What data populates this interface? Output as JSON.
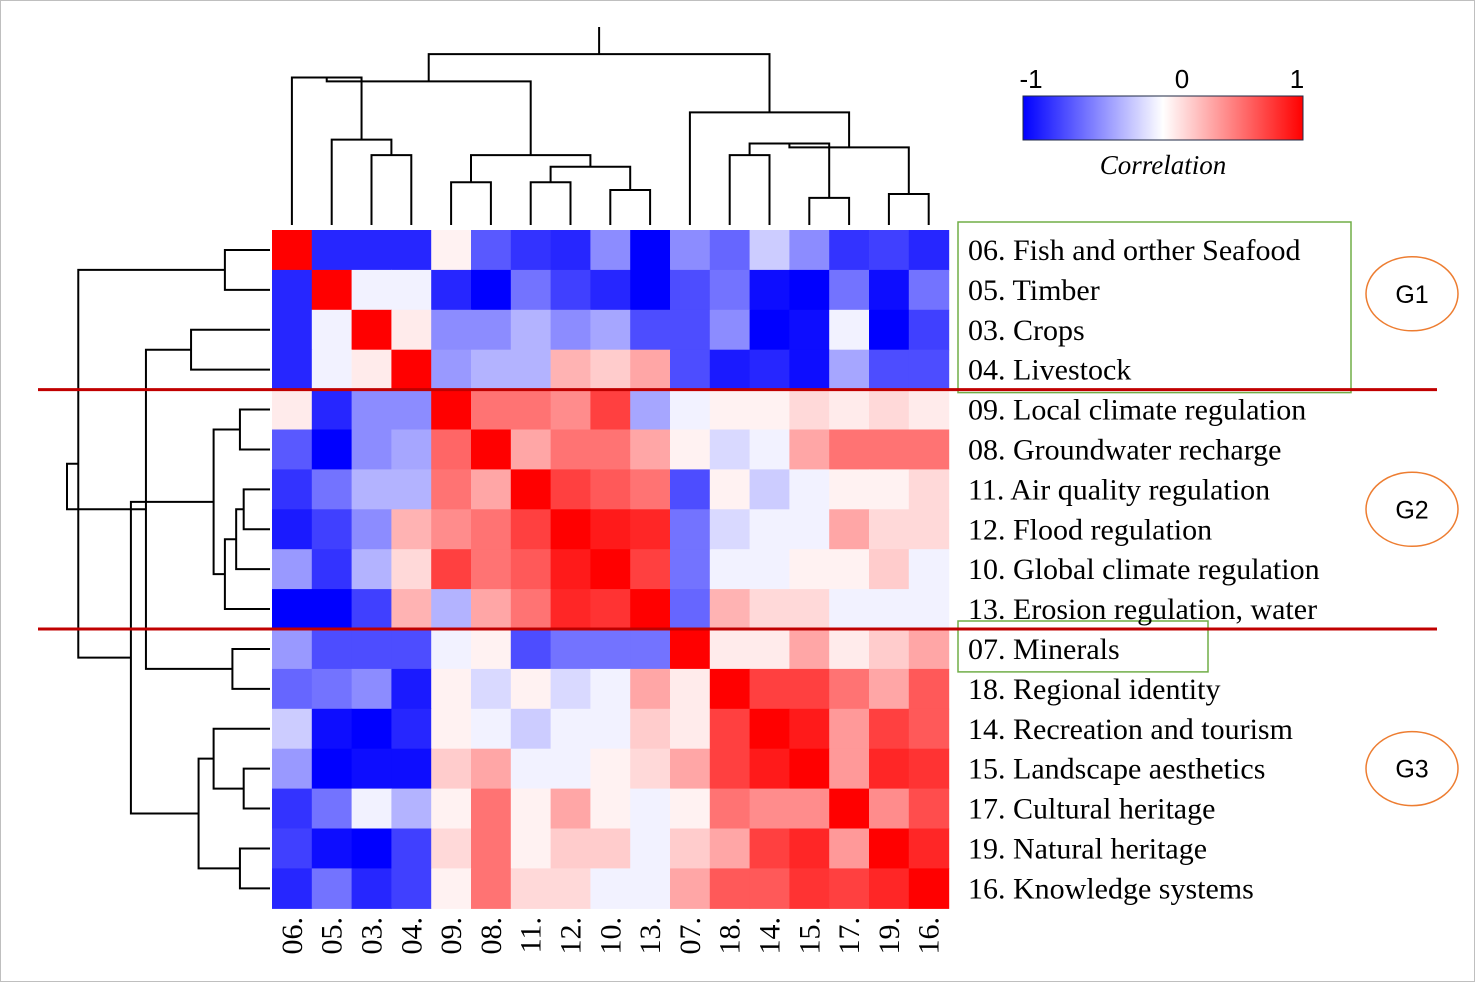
{
  "chart_data": {
    "type": "heatmap",
    "row_labels": [
      "06. Fish and orther Seafood",
      "05. Timber",
      "03. Crops",
      "04. Livestock",
      "09. Local climate regulation",
      "08. Groundwater recharge",
      "11. Air quality regulation",
      "12. Flood regulation",
      "10. Global climate regulation",
      "13. Erosion regulation, water",
      "07. Minerals",
      "18. Regional identity",
      "14. Recreation and tourism",
      "15. Landscape aesthetics",
      "17. Cultural heritage",
      "19. Natural heritage",
      "16. Knowledge systems"
    ],
    "column_labels": [
      "06.",
      "05.",
      "03.",
      "04.",
      "09.",
      "08.",
      "11.",
      "12.",
      "10.",
      "13.",
      "07.",
      "18.",
      "14.",
      "15.",
      "17.",
      "19.",
      "16."
    ],
    "values": [
      [
        1.0,
        -0.85,
        -0.85,
        -0.85,
        0.05,
        -0.65,
        -0.8,
        -0.85,
        -0.45,
        -1.0,
        -0.45,
        -0.6,
        -0.2,
        -0.45,
        -0.8,
        -0.75,
        -0.85
      ],
      [
        -0.85,
        1.0,
        -0.05,
        -0.05,
        -0.85,
        -1.0,
        -0.55,
        -0.75,
        -0.85,
        -1.0,
        -0.7,
        -0.55,
        -0.95,
        -1.0,
        -0.55,
        -0.95,
        -0.55
      ],
      [
        -0.85,
        -0.05,
        1.0,
        0.08,
        -0.45,
        -0.45,
        -0.3,
        -0.45,
        -0.35,
        -0.7,
        -0.7,
        -0.45,
        -1.0,
        -0.95,
        -0.05,
        -1.0,
        -0.75
      ],
      [
        -0.85,
        -0.05,
        0.08,
        1.0,
        -0.4,
        -0.3,
        -0.3,
        0.3,
        0.2,
        0.35,
        -0.7,
        -0.9,
        -0.85,
        -0.95,
        -0.35,
        -0.7,
        -0.7
      ],
      [
        0.08,
        -0.85,
        -0.45,
        -0.45,
        1.0,
        0.55,
        0.55,
        0.45,
        0.75,
        -0.35,
        -0.05,
        0.05,
        0.05,
        0.15,
        0.08,
        0.15,
        0.08
      ],
      [
        -0.65,
        -1.0,
        -0.45,
        -0.35,
        0.6,
        1.0,
        0.35,
        0.55,
        0.55,
        0.35,
        0.05,
        -0.15,
        -0.05,
        0.35,
        0.55,
        0.55,
        0.55
      ],
      [
        -0.8,
        -0.55,
        -0.3,
        -0.3,
        0.55,
        0.35,
        1.0,
        0.75,
        0.65,
        0.55,
        -0.7,
        0.05,
        -0.2,
        -0.05,
        0.05,
        0.05,
        0.15
      ],
      [
        -0.9,
        -0.75,
        -0.45,
        0.3,
        0.45,
        0.55,
        0.75,
        1.0,
        0.9,
        0.85,
        -0.55,
        -0.15,
        -0.05,
        -0.05,
        0.35,
        0.15,
        0.15
      ],
      [
        -0.4,
        -0.8,
        -0.3,
        0.15,
        0.75,
        0.55,
        0.65,
        0.9,
        1.0,
        0.75,
        -0.55,
        -0.05,
        -0.05,
        0.05,
        0.05,
        0.2,
        -0.05
      ],
      [
        -1.0,
        -1.0,
        -0.75,
        0.3,
        -0.3,
        0.35,
        0.55,
        0.85,
        0.8,
        1.0,
        -0.6,
        0.3,
        0.15,
        0.15,
        -0.05,
        -0.05,
        -0.05
      ],
      [
        -0.4,
        -0.7,
        -0.7,
        -0.7,
        -0.05,
        0.05,
        -0.7,
        -0.55,
        -0.55,
        -0.55,
        1.0,
        0.08,
        0.08,
        0.35,
        0.08,
        0.2,
        0.35
      ],
      [
        -0.6,
        -0.55,
        -0.45,
        -0.9,
        0.05,
        -0.15,
        0.05,
        -0.15,
        -0.05,
        0.35,
        0.08,
        1.0,
        0.75,
        0.75,
        0.55,
        0.35,
        0.65
      ],
      [
        -0.2,
        -0.95,
        -1.0,
        -0.85,
        0.05,
        -0.05,
        -0.2,
        -0.05,
        -0.05,
        0.2,
        0.08,
        0.75,
        1.0,
        0.9,
        0.4,
        0.75,
        0.65
      ],
      [
        -0.4,
        -1.0,
        -0.95,
        -0.95,
        0.2,
        0.35,
        -0.05,
        -0.05,
        0.05,
        0.15,
        0.35,
        0.75,
        0.9,
        1.0,
        0.4,
        0.85,
        0.8
      ],
      [
        -0.8,
        -0.55,
        -0.05,
        -0.3,
        0.05,
        0.55,
        0.05,
        0.35,
        0.05,
        -0.05,
        0.05,
        0.55,
        0.45,
        0.45,
        1.0,
        0.45,
        0.7
      ],
      [
        -0.75,
        -0.95,
        -1.0,
        -0.75,
        0.15,
        0.55,
        0.05,
        0.2,
        0.2,
        -0.05,
        0.2,
        0.35,
        0.75,
        0.85,
        0.4,
        1.0,
        0.85
      ],
      [
        -0.85,
        -0.55,
        -0.85,
        -0.75,
        0.05,
        0.55,
        0.15,
        0.15,
        -0.05,
        -0.05,
        0.35,
        0.65,
        0.65,
        0.8,
        0.75,
        0.85,
        1.0
      ]
    ],
    "colorbar": {
      "min_label": "-1",
      "mid_label": "0",
      "max_label": "1",
      "label": "Correlation",
      "range": [
        -1,
        1
      ],
      "colors": [
        "#0000ff",
        "#ffffff",
        "#ff0000"
      ]
    },
    "groups": [
      {
        "label": "G1",
        "first_row": 0,
        "last_row": 3
      },
      {
        "label": "G2",
        "first_row": 4,
        "last_row": 9
      },
      {
        "label": "G3",
        "first_row": 10,
        "last_row": 16
      }
    ],
    "row_dendrogram": {
      "leaves": 17,
      "merges": [
        [
          4,
          5,
          0.8
        ],
        [
          6,
          7,
          0.7
        ],
        [
          18,
          8,
          0.9
        ],
        [
          19,
          9,
          1.2
        ],
        [
          17,
          20,
          1.5
        ],
        [
          13,
          14,
          0.7
        ],
        [
          16,
          15,
          0.8
        ],
        [
          22,
          12,
          1.5
        ],
        [
          10,
          11,
          1.0
        ],
        [
          0,
          1,
          1.2
        ],
        [
          2,
          3,
          2.1
        ],
        [
          23,
          24,
          1.9
        ],
        [
          27,
          25,
          3.3
        ],
        [
          21,
          28,
          3.7
        ],
        [
          26,
          30,
          5.1
        ],
        [
          29,
          31,
          5.4
        ]
      ],
      "max_height": 5.4
    },
    "column_dendrogram": {
      "leaves": 17,
      "merges": [
        [
          4,
          5,
          1.1
        ],
        [
          6,
          7,
          1.1
        ],
        [
          8,
          9,
          0.9
        ],
        [
          18,
          19,
          1.5
        ],
        [
          17,
          20,
          1.8
        ],
        [
          11,
          12,
          1.8
        ],
        [
          13,
          14,
          0.7
        ],
        [
          15,
          16,
          0.8
        ],
        [
          22,
          23,
          2.1
        ],
        [
          24,
          25,
          2.0
        ],
        [
          2,
          3,
          1.8
        ],
        [
          1,
          27,
          2.2
        ],
        [
          0,
          28,
          3.8
        ],
        [
          10,
          26,
          2.9
        ],
        [
          21,
          29,
          3.7
        ],
        [
          30,
          31,
          4.4
        ],
        [
          32,
          33,
          5.1
        ]
      ],
      "max_height": 5.1
    },
    "row_dividers_after": [
      3,
      9
    ],
    "highlighted_label_boxes": [
      {
        "first_row": 0,
        "last_row": 3
      },
      {
        "first_row": 10,
        "last_row": 10
      }
    ]
  },
  "colors": {
    "divider": "#c00000",
    "label_box": "#70ad47",
    "group_ellipse": "#ed7d31",
    "dendrogram": "#000000"
  }
}
